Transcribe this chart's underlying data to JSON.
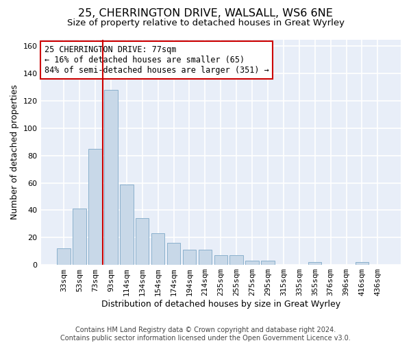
{
  "title1": "25, CHERRINGTON DRIVE, WALSALL, WS6 6NE",
  "title2": "Size of property relative to detached houses in Great Wyrley",
  "xlabel": "Distribution of detached houses by size in Great Wyrley",
  "ylabel": "Number of detached properties",
  "categories": [
    "33sqm",
    "53sqm",
    "73sqm",
    "93sqm",
    "114sqm",
    "134sqm",
    "154sqm",
    "174sqm",
    "194sqm",
    "214sqm",
    "235sqm",
    "255sqm",
    "275sqm",
    "295sqm",
    "315sqm",
    "335sqm",
    "355sqm",
    "376sqm",
    "396sqm",
    "416sqm",
    "436sqm"
  ],
  "values": [
    12,
    41,
    85,
    128,
    59,
    34,
    23,
    16,
    11,
    11,
    7,
    7,
    3,
    3,
    0,
    0,
    2,
    0,
    0,
    2,
    0
  ],
  "bar_color": "#c8d8e8",
  "bar_edge_color": "#8ab0cc",
  "background_color": "#e8eef8",
  "grid_color": "#ffffff",
  "vline_x": 2.5,
  "vline_color": "#cc0000",
  "annotation_line1": "25 CHERRINGTON DRIVE: 77sqm",
  "annotation_line2": "← 16% of detached houses are smaller (65)",
  "annotation_line3": "84% of semi-detached houses are larger (351) →",
  "ylim": [
    0,
    165
  ],
  "yticks": [
    0,
    20,
    40,
    60,
    80,
    100,
    120,
    140,
    160
  ],
  "footer_line1": "Contains HM Land Registry data © Crown copyright and database right 2024.",
  "footer_line2": "Contains public sector information licensed under the Open Government Licence v3.0.",
  "title1_fontsize": 11.5,
  "title2_fontsize": 9.5,
  "xlabel_fontsize": 9,
  "ylabel_fontsize": 9,
  "tick_fontsize": 8,
  "annot_fontsize": 8.5,
  "footer_fontsize": 7
}
